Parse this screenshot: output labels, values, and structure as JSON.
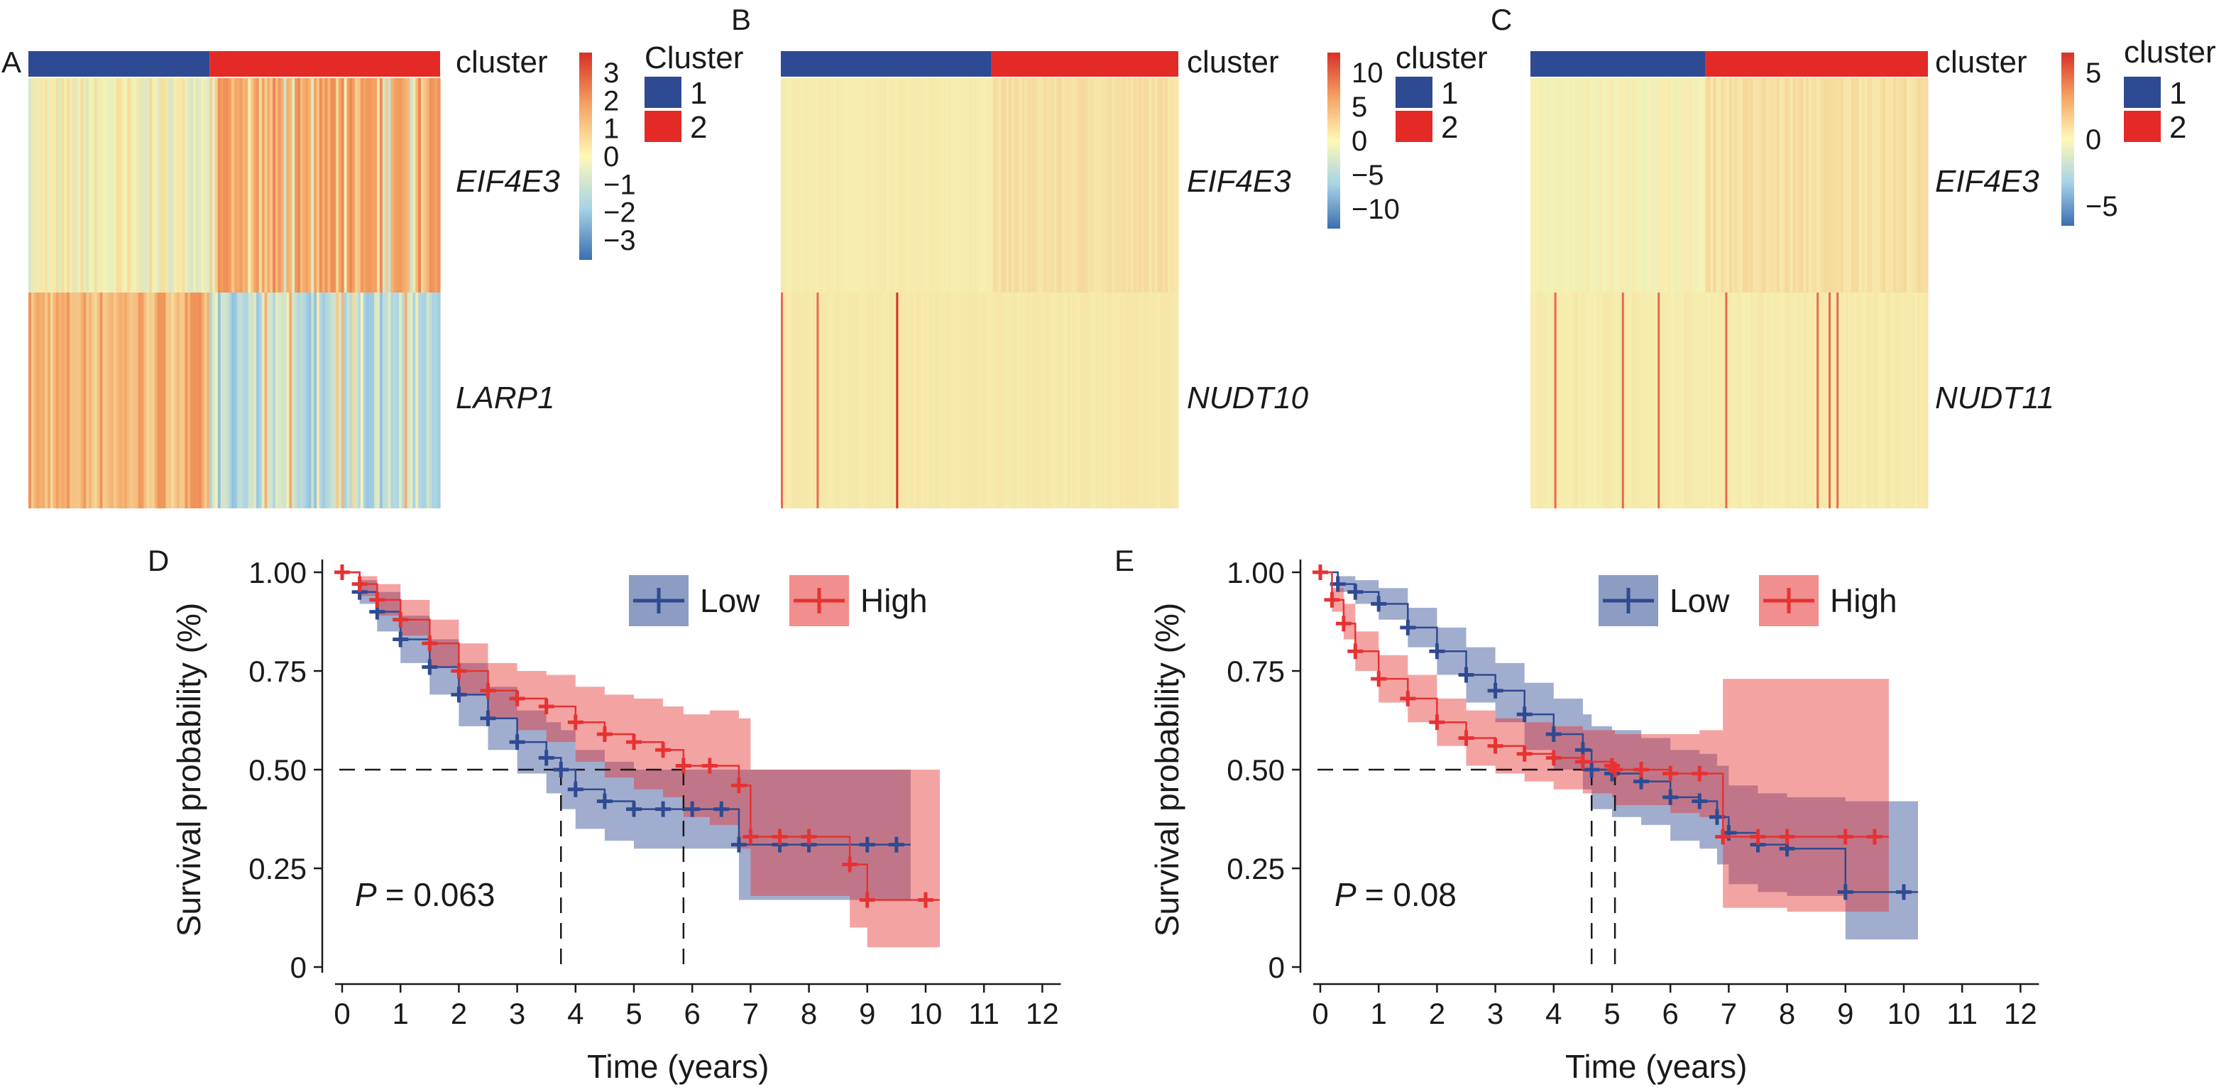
{
  "colors": {
    "blue": "#2e4a92",
    "red": "#e32a26",
    "km_blue": "#2e4a92",
    "km_red": "#e63232"
  },
  "panels": {
    "A": {
      "letter": "A",
      "annotation_label": "cluster",
      "genes": [
        "EIF4E3",
        "LARP1"
      ],
      "colorbar_ticks": [
        "3",
        "2",
        "1",
        "0",
        "−1",
        "−2",
        "−3"
      ],
      "legend_title": "Cluster",
      "legend_items": [
        "1",
        "2"
      ]
    },
    "B": {
      "letter": "B",
      "annotation_label": "cluster",
      "genes": [
        "EIF4E3",
        "NUDT10"
      ],
      "colorbar_ticks": [
        "10",
        "5",
        "0",
        "−5",
        "−10"
      ],
      "legend_title": "cluster",
      "legend_items": [
        "1",
        "2"
      ]
    },
    "C": {
      "letter": "C",
      "annotation_label": "cluster",
      "genes": [
        "EIF4E3",
        "NUDT11"
      ],
      "colorbar_ticks": [
        "5",
        "0",
        "−5"
      ],
      "legend_title": "cluster",
      "legend_items": [
        "1",
        "2"
      ]
    },
    "D": {
      "letter": "D",
      "p_label": "P",
      "p_value": "= 0.063"
    },
    "E": {
      "letter": "E",
      "p_label": "P",
      "p_value": "= 0.08"
    }
  },
  "chart_data": [
    {
      "panel": "A",
      "type": "heatmap",
      "rows": [
        "EIF4E3",
        "LARP1"
      ],
      "column_groups": [
        "1",
        "2"
      ],
      "column_group_fraction_cluster1": 0.44,
      "color_range": [
        -3,
        3
      ]
    },
    {
      "panel": "B",
      "type": "heatmap",
      "rows": [
        "EIF4E3",
        "NUDT10"
      ],
      "column_groups": [
        "1",
        "2"
      ],
      "column_group_fraction_cluster1": 0.53,
      "color_range": [
        -10,
        10
      ]
    },
    {
      "panel": "C",
      "type": "heatmap",
      "rows": [
        "EIF4E3",
        "NUDT11"
      ],
      "column_groups": [
        "1",
        "2"
      ],
      "column_group_fraction_cluster1": 0.44,
      "color_range": [
        -5,
        5
      ]
    },
    {
      "panel": "D",
      "type": "line",
      "xlabel": "Time (years)",
      "ylabel": "Survival probability (%)",
      "xlim": [
        -0.5,
        12.5
      ],
      "ylim": [
        0,
        1.05
      ],
      "xticks": [
        "0",
        "1",
        "2",
        "3",
        "4",
        "5",
        "6",
        "7",
        "8",
        "9",
        "10",
        "11",
        "12"
      ],
      "yticks": [
        "0",
        "0.25",
        "0.50",
        "0.75",
        "1.00"
      ],
      "median_line": 0.5,
      "medians": [
        3.75,
        5.85
      ],
      "series": [
        {
          "name": "Low",
          "color": "#2e4a92",
          "x": [
            0,
            0.3,
            0.6,
            1,
            1.5,
            2,
            2.5,
            3,
            3.5,
            3.75,
            4,
            4.5,
            5,
            5.5,
            6,
            6.5,
            6.8,
            7.5,
            8,
            9,
            9.5
          ],
          "y": [
            1.0,
            0.95,
            0.9,
            0.83,
            0.76,
            0.69,
            0.63,
            0.57,
            0.53,
            0.5,
            0.45,
            0.42,
            0.4,
            0.4,
            0.4,
            0.4,
            0.31,
            0.31,
            0.31,
            0.31,
            0.31
          ],
          "lower": [
            1.0,
            0.92,
            0.85,
            0.77,
            0.69,
            0.61,
            0.55,
            0.49,
            0.44,
            0.4,
            0.35,
            0.32,
            0.3,
            0.3,
            0.3,
            0.3,
            0.17,
            0.17,
            0.17,
            0.17,
            0.17
          ],
          "upper": [
            1.0,
            0.98,
            0.95,
            0.89,
            0.83,
            0.77,
            0.71,
            0.65,
            0.62,
            0.6,
            0.55,
            0.52,
            0.5,
            0.5,
            0.5,
            0.5,
            0.5,
            0.5,
            0.5,
            0.5,
            0.5
          ]
        },
        {
          "name": "High",
          "color": "#e63232",
          "x": [
            0,
            0.3,
            0.6,
            1,
            1.5,
            2,
            2.5,
            3,
            3.5,
            4,
            4.5,
            5,
            5.5,
            5.85,
            6.3,
            6.8,
            7,
            7.5,
            8,
            8.7,
            9,
            10
          ],
          "y": [
            1.0,
            0.97,
            0.93,
            0.88,
            0.82,
            0.75,
            0.7,
            0.68,
            0.66,
            0.62,
            0.59,
            0.57,
            0.55,
            0.51,
            0.51,
            0.46,
            0.33,
            0.33,
            0.33,
            0.26,
            0.17,
            0.17
          ],
          "lower": [
            1.0,
            0.94,
            0.89,
            0.84,
            0.76,
            0.69,
            0.63,
            0.6,
            0.57,
            0.52,
            0.48,
            0.45,
            0.43,
            0.38,
            0.36,
            0.3,
            0.18,
            0.18,
            0.18,
            0.1,
            0.05,
            0.05
          ],
          "upper": [
            1.0,
            0.99,
            0.97,
            0.93,
            0.88,
            0.82,
            0.77,
            0.75,
            0.74,
            0.71,
            0.69,
            0.68,
            0.66,
            0.64,
            0.65,
            0.63,
            0.5,
            0.5,
            0.5,
            0.5,
            0.5,
            0.5
          ]
        }
      ]
    },
    {
      "panel": "E",
      "type": "line",
      "xlabel": "Time (years)",
      "ylabel": "Survival probability (%)",
      "xlim": [
        -0.5,
        12.5
      ],
      "ylim": [
        0,
        1.05
      ],
      "xticks": [
        "0",
        "1",
        "2",
        "3",
        "4",
        "5",
        "6",
        "7",
        "8",
        "9",
        "10",
        "11",
        "12"
      ],
      "yticks": [
        "0",
        "0.25",
        "0.50",
        "0.75",
        "1.00"
      ],
      "median_line": 0.5,
      "medians": [
        4.65,
        5.05
      ],
      "series": [
        {
          "name": "Low",
          "color": "#2e4a92",
          "x": [
            0,
            0.3,
            0.6,
            1,
            1.5,
            2,
            2.5,
            3,
            3.5,
            4,
            4.5,
            4.65,
            5,
            5.5,
            6,
            6.5,
            6.8,
            7,
            7.5,
            8,
            9,
            10
          ],
          "y": [
            1.0,
            0.97,
            0.95,
            0.92,
            0.86,
            0.8,
            0.74,
            0.7,
            0.64,
            0.59,
            0.55,
            0.5,
            0.49,
            0.47,
            0.43,
            0.42,
            0.38,
            0.34,
            0.31,
            0.3,
            0.19,
            0.19
          ],
          "lower": [
            1.0,
            0.95,
            0.92,
            0.88,
            0.81,
            0.74,
            0.67,
            0.62,
            0.55,
            0.5,
            0.45,
            0.4,
            0.38,
            0.36,
            0.32,
            0.3,
            0.26,
            0.21,
            0.19,
            0.18,
            0.07,
            0.07
          ],
          "upper": [
            1.0,
            0.99,
            0.98,
            0.96,
            0.91,
            0.86,
            0.81,
            0.77,
            0.72,
            0.68,
            0.64,
            0.61,
            0.6,
            0.58,
            0.55,
            0.54,
            0.51,
            0.46,
            0.44,
            0.43,
            0.42,
            0.42
          ]
        },
        {
          "name": "High",
          "color": "#e63232",
          "x": [
            0,
            0.2,
            0.4,
            0.6,
            1,
            1.5,
            2,
            2.5,
            3,
            3.5,
            4,
            4.5,
            5,
            5.05,
            5.5,
            6,
            6.5,
            6.9,
            7.5,
            8,
            9,
            9.5
          ],
          "y": [
            1.0,
            0.93,
            0.87,
            0.8,
            0.73,
            0.68,
            0.62,
            0.58,
            0.56,
            0.54,
            0.53,
            0.52,
            0.51,
            0.5,
            0.5,
            0.49,
            0.49,
            0.33,
            0.33,
            0.33,
            0.33,
            0.33
          ],
          "lower": [
            1.0,
            0.9,
            0.83,
            0.75,
            0.67,
            0.62,
            0.56,
            0.51,
            0.49,
            0.47,
            0.45,
            0.44,
            0.43,
            0.41,
            0.41,
            0.39,
            0.38,
            0.15,
            0.15,
            0.14,
            0.14,
            0.14
          ],
          "upper": [
            1.0,
            0.96,
            0.92,
            0.85,
            0.79,
            0.74,
            0.68,
            0.65,
            0.63,
            0.62,
            0.61,
            0.6,
            0.6,
            0.59,
            0.59,
            0.59,
            0.6,
            0.73,
            0.73,
            0.73,
            0.73,
            0.73
          ]
        }
      ]
    }
  ]
}
